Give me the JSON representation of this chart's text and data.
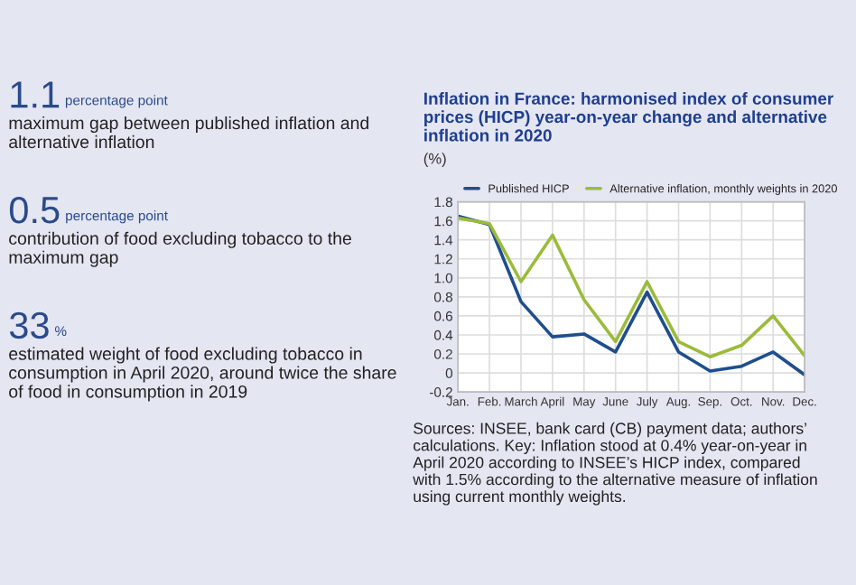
{
  "chart_data": [
    {
      "type": "other",
      "annotations": [
        "1.1",
        "percentage point",
        "maximum gap between published inflation and alternative inflation",
        "0.5",
        "percentage point",
        "contribution of food excluding tobacco to the maximum gap",
        "33",
        "%",
        "estimated weight of food excluding tobacco in consumption in April 2020, around twice the share of food in consumption in 2019"
      ]
    },
    {
      "type": "line",
      "title": "Inflation in France: harmonised index of consumer prices (HICP) year-on-year change and alternative inflation in 2020",
      "ylabel": "(%)",
      "categories": [
        "Jan.",
        "Feb.",
        "March",
        "April",
        "May",
        "June",
        "July",
        "Aug.",
        "Sep.",
        "Oct.",
        "Nov.",
        "Dec."
      ],
      "series": [
        {
          "name": "Published HICP",
          "color": "#1f4e8c",
          "values": [
            1.65,
            1.56,
            0.75,
            0.38,
            0.41,
            0.22,
            0.85,
            0.22,
            0.02,
            0.07,
            0.22,
            -0.02
          ]
        },
        {
          "name": "Alternative inflation, monthly weights in 2020",
          "color": "#9bbb3b",
          "values": [
            1.63,
            1.57,
            0.96,
            1.45,
            0.77,
            0.33,
            0.96,
            0.33,
            0.17,
            0.29,
            0.6,
            0.18
          ]
        }
      ],
      "ylim": [
        -0.2,
        1.8
      ],
      "yticks": [
        -0.2,
        0,
        0.2,
        0.4,
        0.6,
        0.8,
        {
          "value": 1.0,
          "label": "1.0"
        },
        1.2,
        1.4,
        1.6,
        1.8
      ],
      "grid": true,
      "legend": "top",
      "marker": "none",
      "line_style": "solid",
      "annotations": [
        "Sources: INSEE, bank card (CB) payment data; authors’ calculations. Key: Inflation stood at 0.4% year-on-year in April 2020 according to INSEE’s HICP index, compared with 1.5% according to the alternative measure of inflation using current monthly weights."
      ]
    }
  ]
}
